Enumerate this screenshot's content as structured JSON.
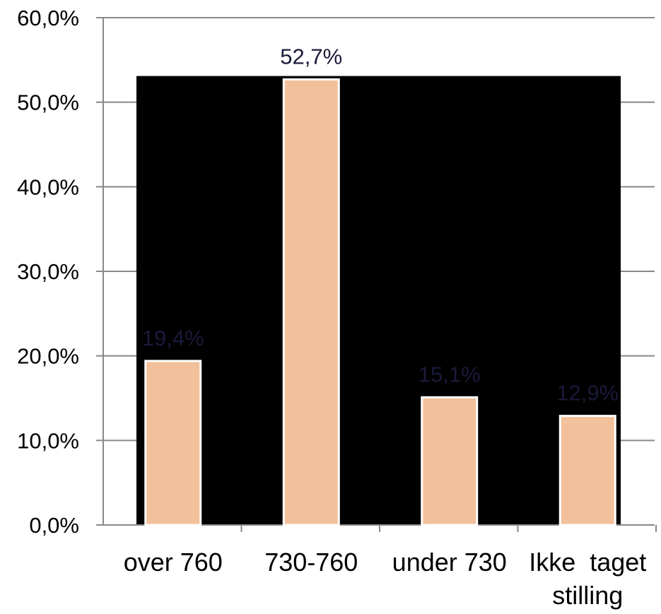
{
  "chart_data": {
    "type": "bar",
    "categories": [
      "over 760",
      "730-760",
      "under 730",
      "Ikke  taget stilling"
    ],
    "category_lines": [
      [
        "over 760"
      ],
      [
        "730-760"
      ],
      [
        "under 730"
      ],
      [
        "Ikke  taget",
        "stilling"
      ]
    ],
    "values": [
      19.4,
      52.7,
      15.1,
      12.9
    ],
    "data_labels": [
      "19,4%",
      "52,7%",
      "15,1%",
      "12,9%"
    ],
    "y_ticks": [
      0,
      10,
      20,
      30,
      40,
      50,
      60
    ],
    "y_tick_labels": [
      "0,0%",
      "10,0%",
      "20,0%",
      "30,0%",
      "40,0%",
      "50,0%",
      "60,0%"
    ],
    "ylim": [
      0,
      60
    ],
    "grid": true,
    "title": "",
    "xlabel": "",
    "ylabel": ""
  },
  "colors": {
    "bar_fill": "#f2c19c",
    "bar_stroke": "#ffffff",
    "plot_background": "#000000",
    "data_label_on_dark": "#1a1a3a",
    "data_label_on_light": "#000000",
    "gridline": "#888888",
    "axis": "#888888",
    "text": "#000000"
  }
}
